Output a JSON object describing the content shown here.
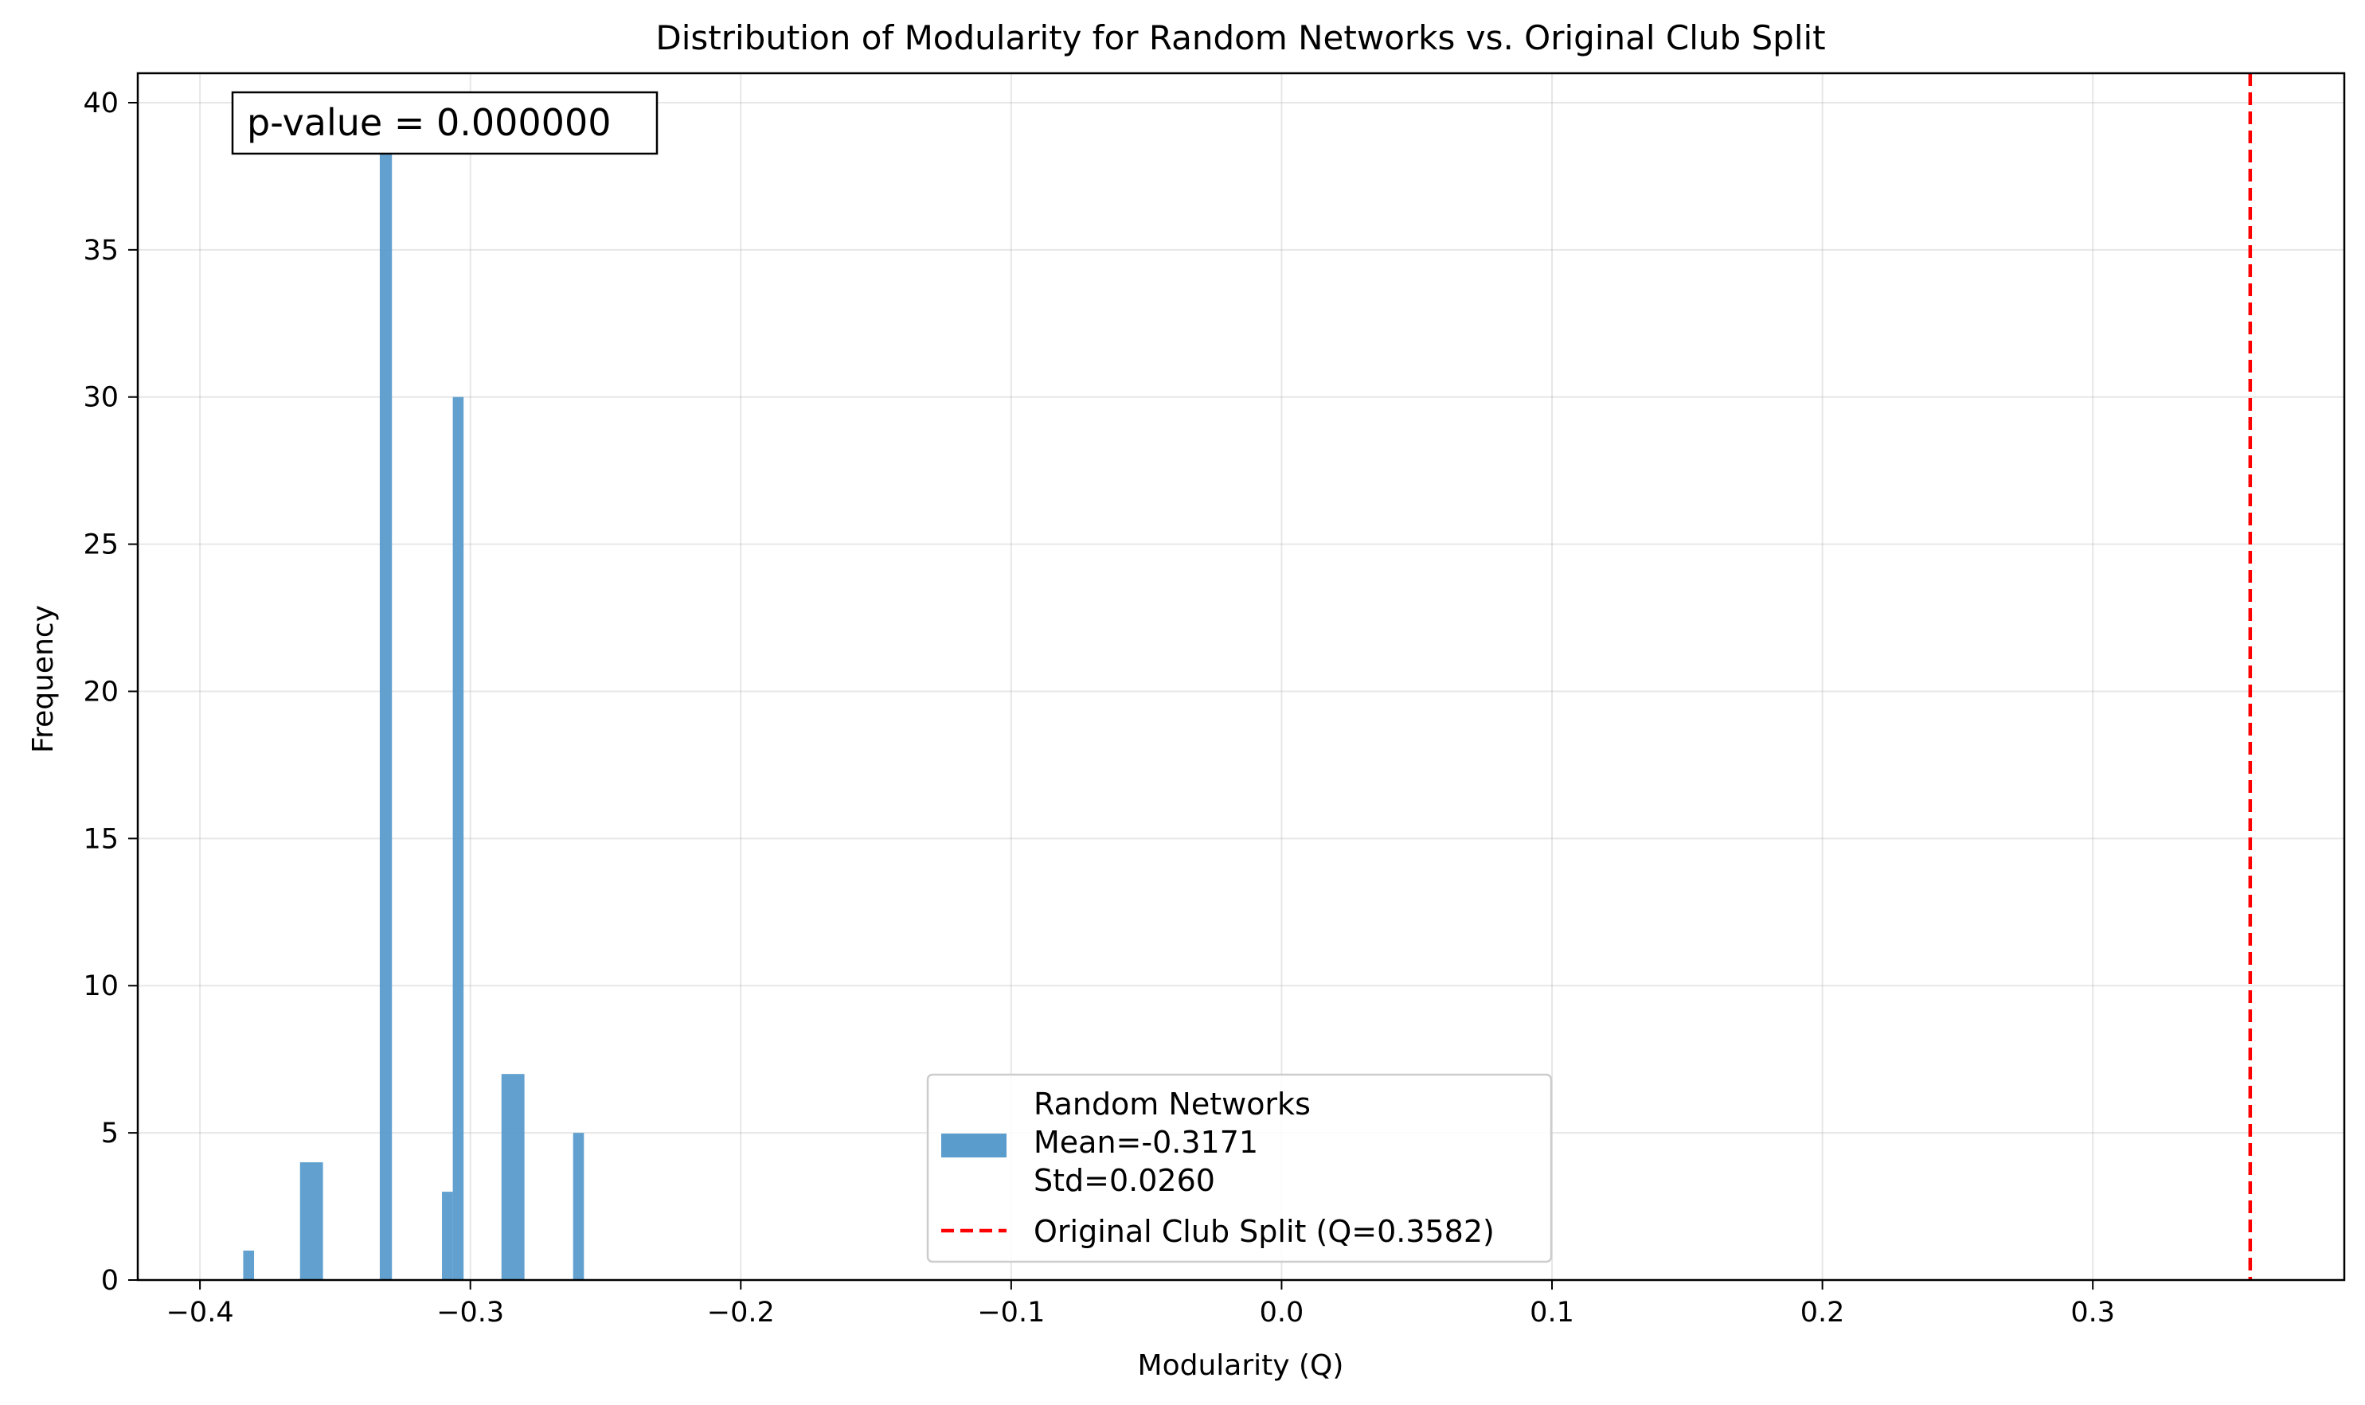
{
  "chart_data": {
    "type": "bar",
    "title": "Distribution of Modularity for Random Networks vs. Original Club Split",
    "xlabel": "Modularity (Q)",
    "ylabel": "Frequency",
    "xlim": [
      -0.423,
      0.393
    ],
    "ylim": [
      0,
      41
    ],
    "x_ticks": [
      -0.4,
      -0.3,
      -0.2,
      -0.1,
      0.0,
      0.1,
      0.2,
      0.3
    ],
    "x_tick_labels": [
      "−0.4",
      "−0.3",
      "−0.2",
      "−0.1",
      "0.0",
      "0.1",
      "0.2",
      "0.3"
    ],
    "y_ticks": [
      0,
      5,
      10,
      15,
      20,
      25,
      30,
      35,
      40
    ],
    "y_tick_labels": [
      "0",
      "5",
      "10",
      "15",
      "20",
      "25",
      "30",
      "35",
      "40"
    ],
    "grid": true,
    "series": [
      {
        "name": "Random Networks",
        "type": "histogram",
        "color": "#5a9ccc",
        "bars": [
          {
            "x0": -0.384,
            "x1": -0.38,
            "count": 1
          },
          {
            "x0": -0.363,
            "x1": -0.3545,
            "count": 4
          },
          {
            "x0": -0.3335,
            "x1": -0.329,
            "count": 39
          },
          {
            "x0": -0.3105,
            "x1": -0.3065,
            "count": 3
          },
          {
            "x0": -0.3065,
            "x1": -0.3025,
            "count": 30
          },
          {
            "x0": -0.2885,
            "x1": -0.28,
            "count": 7
          },
          {
            "x0": -0.262,
            "x1": -0.258,
            "count": 5
          }
        ]
      },
      {
        "name": "Original Club Split (Q=0.3582)",
        "type": "vline",
        "x": 0.3582,
        "color": "#ff0000",
        "style": "dashed"
      }
    ],
    "legend": {
      "placement": "lower-center",
      "entries": [
        {
          "lines": [
            "Random Networks",
            "Mean=-0.3171",
            "Std=0.0260"
          ],
          "kind": "patch",
          "color": "#5a9ccc"
        },
        {
          "lines": [
            "Original Club Split (Q=0.3582)"
          ],
          "kind": "dashed-line",
          "color": "#ff0000"
        }
      ]
    },
    "annotation": "p-value = 0.000000",
    "annotation_placement": "top-left"
  }
}
